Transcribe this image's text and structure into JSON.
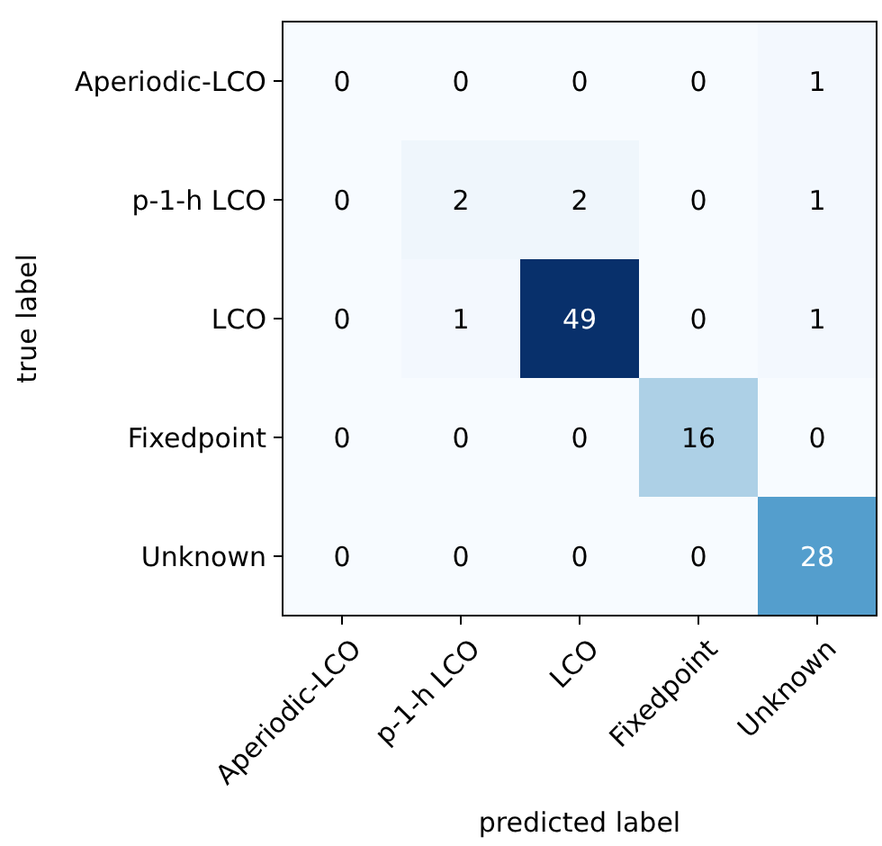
{
  "chart_data": {
    "type": "heatmap",
    "data_labels": true,
    "xlabel": "predicted label",
    "ylabel": "true label",
    "categories": [
      "Aperiodic-LCO",
      "p-1-h LCO",
      "LCO",
      "Fixedpoint",
      "Unknown"
    ],
    "y_categories": [
      "Aperiodic-LCO",
      "p-1-h LCO",
      "LCO",
      "Fixedpoint",
      "Unknown"
    ],
    "cells": [
      [
        0,
        0,
        0,
        0,
        1
      ],
      [
        0,
        2,
        2,
        0,
        1
      ],
      [
        0,
        1,
        49,
        0,
        1
      ],
      [
        0,
        0,
        0,
        16,
        0
      ],
      [
        0,
        0,
        0,
        0,
        28
      ]
    ]
  }
}
